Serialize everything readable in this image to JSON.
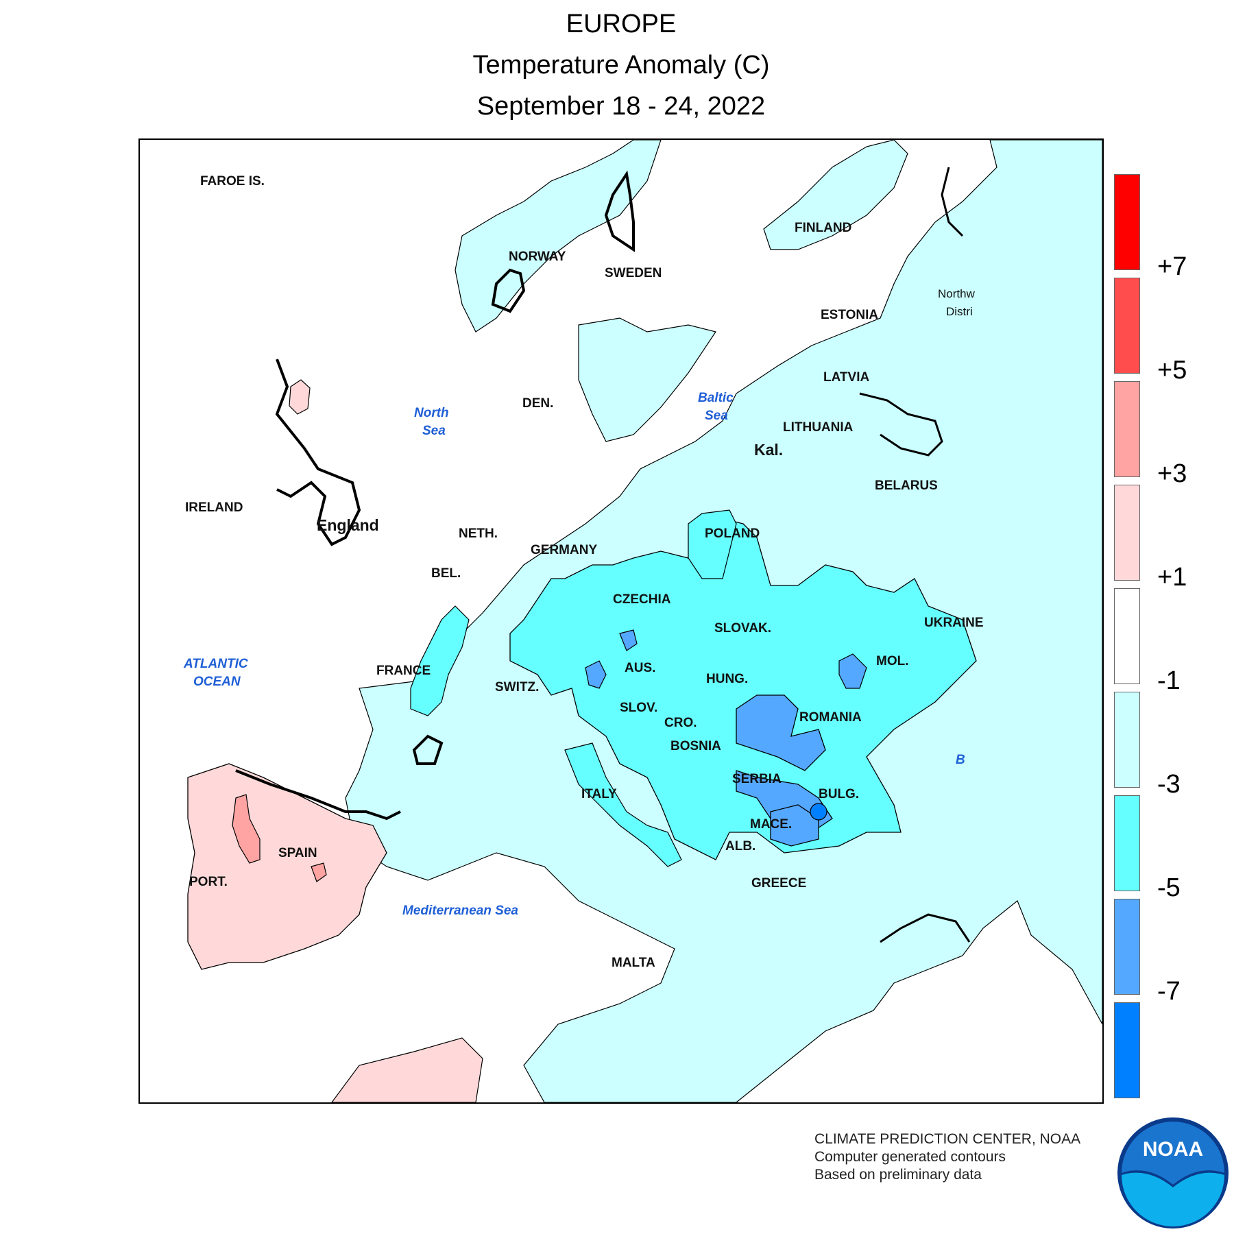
{
  "title": {
    "line1": "EUROPE",
    "line2": "Temperature Anomaly (C)",
    "line3": "September 18 - 24, 2022"
  },
  "map": {
    "country_labels": {
      "faroe": "FAROE IS.",
      "norway": "NORWAY",
      "sweden": "SWEDEN",
      "finland": "FINLAND",
      "estonia": "ESTONIA",
      "latvia": "LATVIA",
      "lithuania": "LITHUANIA",
      "belarus": "BELARUS",
      "den": "DEN.",
      "ireland": "IRELAND",
      "england": "England",
      "neth": "NETH.",
      "bel": "BEL.",
      "germany": "GERMANY",
      "poland": "POLAND",
      "czechia": "CZECHIA",
      "slovak": "SLOVAK.",
      "ukraine": "UKRAINE",
      "france": "FRANCE",
      "switz": "SWITZ.",
      "aus": "AUS.",
      "hung": "HUNG.",
      "mol": "MOL.",
      "slov": "SLOV.",
      "cro": "CRO.",
      "romania": "ROMANIA",
      "bosnia": "BOSNIA",
      "serbia": "SERBIA",
      "bulg": "BULG.",
      "italy": "ITALY",
      "mace": "MACE.",
      "alb": "ALB.",
      "spain": "SPAIN",
      "port": "PORT.",
      "greece": "GREECE",
      "malta": "MALTA",
      "kal": "Kal.",
      "northwest_1": "Northw",
      "northwest_2": "Distri"
    },
    "water_labels": {
      "north_sea_1": "North",
      "north_sea_2": "Sea",
      "baltic_1": "Baltic",
      "baltic_2": "Sea",
      "atlantic_1": "ATLANTIC",
      "atlantic_2": "OCEAN",
      "med": "Mediterranean Sea",
      "black_fragment": "B"
    }
  },
  "legend": {
    "colors": [
      "#ff0000",
      "#ff4d4d",
      "#ffa3a3",
      "#ffd9d9",
      "#ffffff",
      "#ccffff",
      "#66ffff",
      "#55a8ff",
      "#0080ff"
    ],
    "ticks": [
      "+7",
      "+5",
      "+3",
      "+1",
      "-1",
      "-3",
      "-5",
      "-7"
    ]
  },
  "credits": {
    "line1": "CLIMATE PREDICTION CENTER, NOAA",
    "line2": "Computer generated contours",
    "line3": "Based on preliminary data"
  },
  "logo": {
    "text": "NOAA",
    "colors": {
      "sky": "#1a75ce",
      "ocean": "#0db0ec",
      "navy": "#0a3a8a"
    }
  }
}
